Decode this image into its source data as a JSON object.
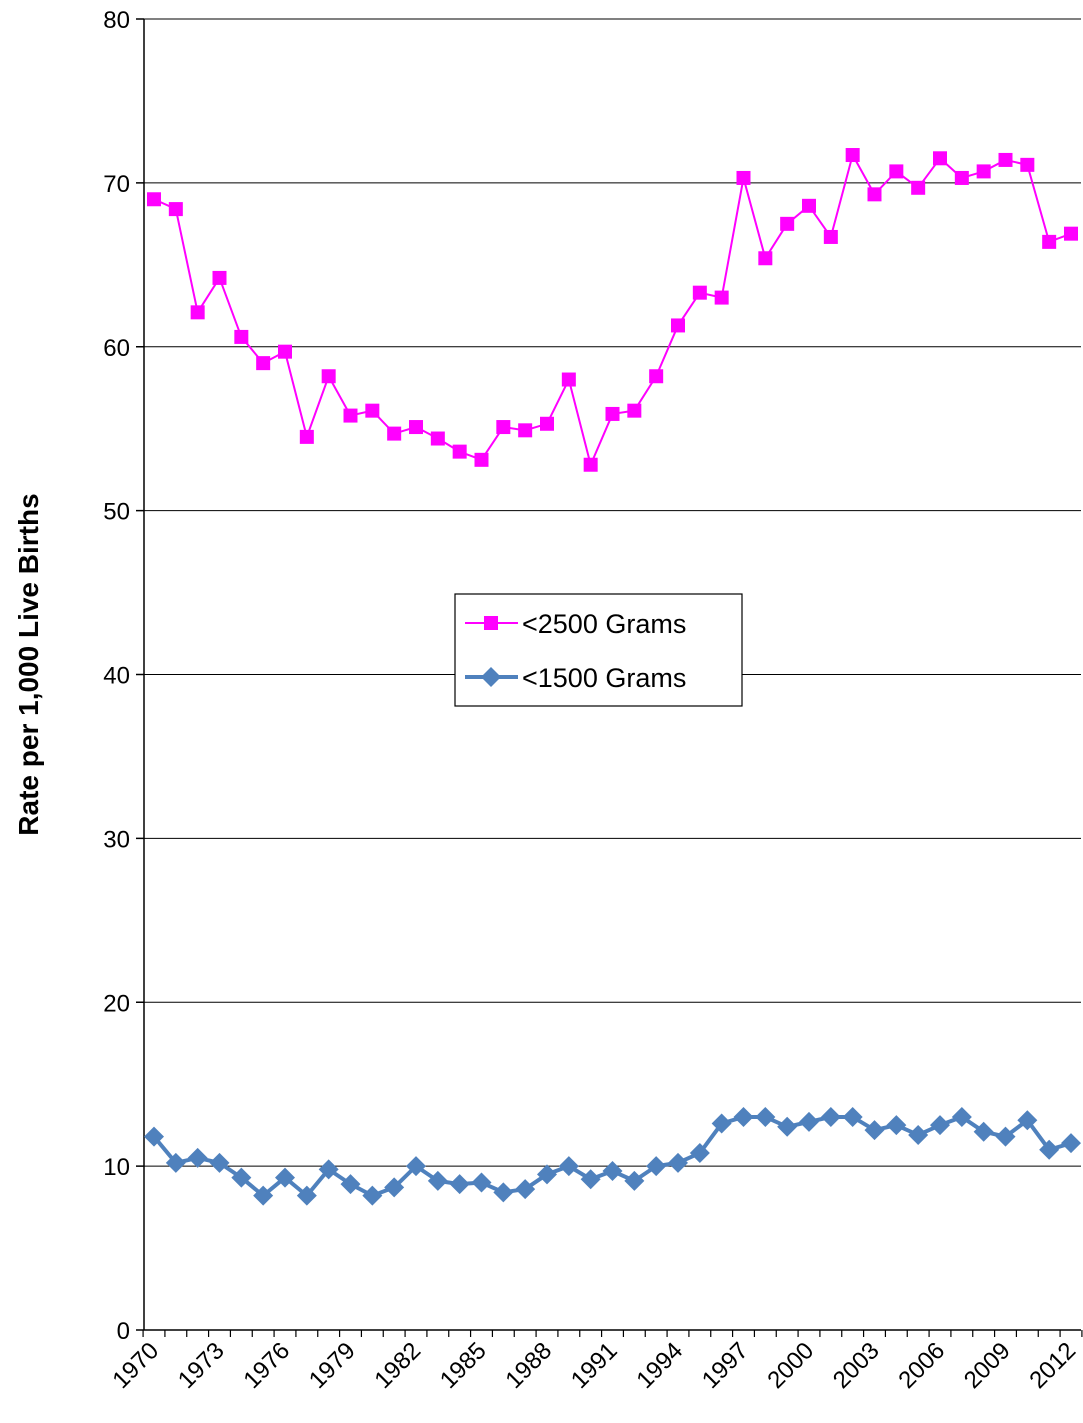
{
  "chart_data": {
    "type": "line",
    "title": "",
    "xlabel": "",
    "ylabel": "Rate per 1,000 Live Births",
    "ylim": [
      0,
      80
    ],
    "yticks": [
      "0",
      "10",
      "20",
      "30",
      "40",
      "50",
      "60",
      "70",
      "80"
    ],
    "x": [
      1970,
      1971,
      1972,
      1973,
      1974,
      1975,
      1976,
      1977,
      1978,
      1979,
      1980,
      1981,
      1982,
      1983,
      1984,
      1985,
      1986,
      1987,
      1988,
      1989,
      1990,
      1991,
      1992,
      1993,
      1994,
      1995,
      1996,
      1997,
      1998,
      1999,
      2000,
      2001,
      2002,
      2003,
      2004,
      2005,
      2006,
      2007,
      2008,
      2009,
      2010,
      2011,
      2012
    ],
    "xticks": [
      "1970",
      "1973",
      "1976",
      "1979",
      "1982",
      "1985",
      "1988",
      "1991",
      "1994",
      "1997",
      "2000",
      "2003",
      "2006",
      "2009",
      "2012"
    ],
    "grid": "horizontal",
    "legend_position": "center",
    "series": [
      {
        "name": "<2500 Grams",
        "color": "#ff00ff",
        "marker": "square",
        "values": [
          69.0,
          68.4,
          62.1,
          64.2,
          60.6,
          59.0,
          59.7,
          54.5,
          58.2,
          55.8,
          56.1,
          54.7,
          55.1,
          54.4,
          53.6,
          53.1,
          55.1,
          54.9,
          55.3,
          58.0,
          52.8,
          55.9,
          56.1,
          58.2,
          61.3,
          63.3,
          63.0,
          70.3,
          65.4,
          67.5,
          68.6,
          66.7,
          71.7,
          69.3,
          70.7,
          69.7,
          71.5,
          70.3,
          70.7,
          71.4,
          71.1,
          66.4,
          66.9
        ]
      },
      {
        "name": "<1500 Grams",
        "color": "#4f81bd",
        "marker": "diamond",
        "values": [
          11.8,
          10.2,
          10.5,
          10.2,
          9.3,
          8.2,
          9.3,
          8.2,
          9.8,
          8.9,
          8.2,
          8.7,
          10.0,
          9.1,
          8.9,
          9.0,
          8.4,
          8.6,
          9.5,
          10.0,
          9.2,
          9.7,
          9.1,
          10.0,
          10.2,
          10.8,
          12.6,
          13.0,
          13.0,
          12.4,
          12.7,
          13.0,
          13.0,
          12.2,
          12.5,
          11.9,
          12.5,
          13.0,
          12.1,
          11.8,
          12.8,
          11.0,
          11.4
        ]
      }
    ]
  }
}
